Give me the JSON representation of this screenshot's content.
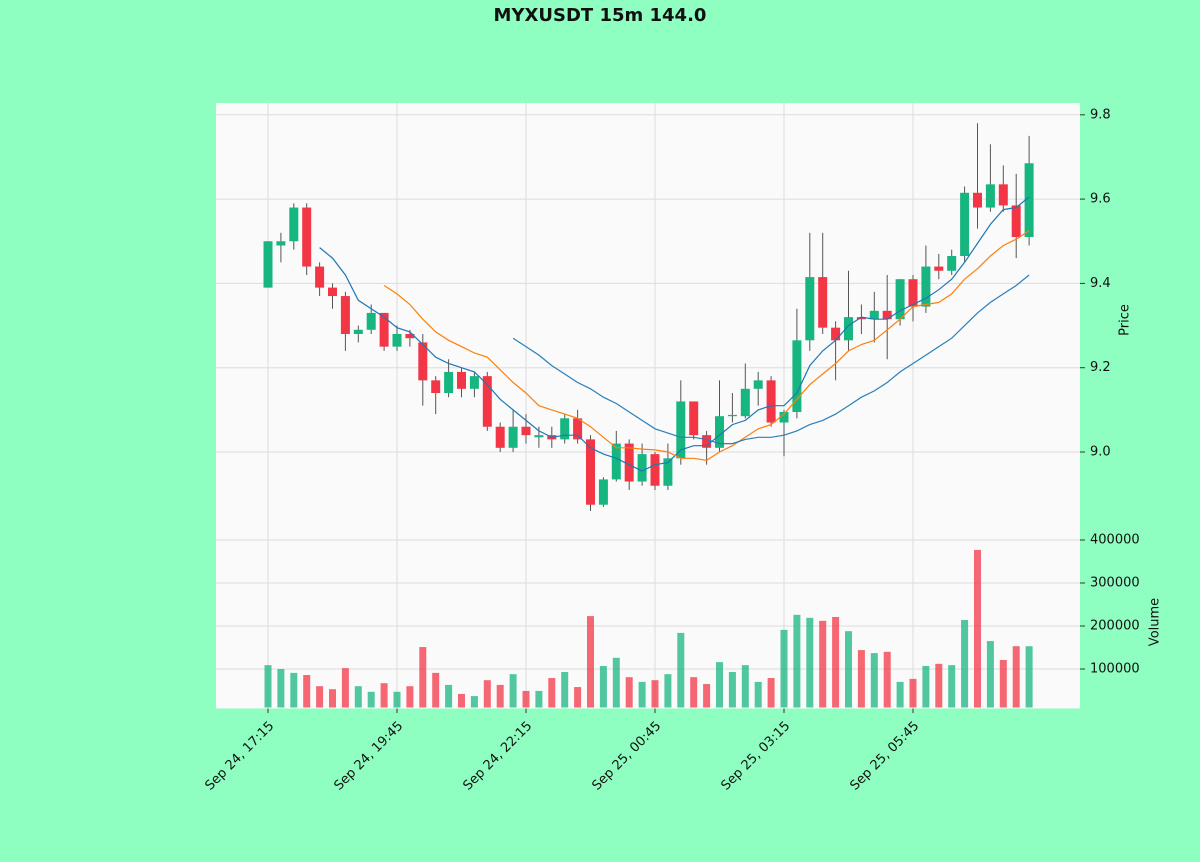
{
  "chart_data": [
    {
      "type": "candlestick",
      "title": "MYXUSDT 15m 144.0",
      "ylabel": "Price",
      "categories": [
        "Sep 24, 17:15",
        null,
        null,
        null,
        null,
        null,
        null,
        null,
        null,
        null,
        "Sep 24, 19:45",
        null,
        null,
        null,
        null,
        null,
        null,
        null,
        null,
        null,
        "Sep 24, 22:15",
        null,
        null,
        null,
        null,
        null,
        null,
        null,
        null,
        null,
        "Sep 25, 00:45",
        null,
        null,
        null,
        null,
        null,
        null,
        null,
        null,
        null,
        "Sep 25, 03:15",
        null,
        null,
        null,
        null,
        null,
        null,
        null,
        null,
        null,
        "Sep 25, 05:45",
        null,
        null,
        null,
        null,
        null,
        null,
        null,
        null,
        null
      ],
      "open": [
        9.39,
        9.49,
        9.5,
        9.58,
        9.44,
        9.39,
        9.37,
        9.28,
        9.29,
        9.33,
        9.25,
        9.28,
        9.26,
        9.17,
        9.14,
        9.19,
        9.15,
        9.18,
        9.06,
        9.01,
        9.06,
        9.035,
        9.04,
        9.03,
        9.08,
        9.03,
        8.875,
        8.935,
        9.02,
        8.93,
        8.995,
        8.92,
        8.985,
        9.12,
        9.04,
        9.01,
        9.085,
        9.085,
        9.15,
        9.17,
        9.07,
        9.095,
        9.265,
        9.415,
        9.295,
        9.265,
        9.32,
        9.315,
        9.335,
        9.315,
        9.41,
        9.345,
        9.44,
        9.43,
        9.465,
        9.615,
        9.58,
        9.635,
        9.585,
        9.51
      ],
      "high": [
        9.5,
        9.52,
        9.59,
        9.59,
        9.45,
        9.4,
        9.38,
        9.3,
        9.35,
        9.33,
        9.3,
        9.29,
        9.28,
        9.18,
        9.22,
        9.2,
        9.19,
        9.19,
        9.07,
        9.1,
        9.09,
        9.06,
        9.06,
        9.09,
        9.1,
        9.04,
        8.94,
        9.05,
        9.03,
        9.02,
        9.0,
        9.02,
        9.17,
        9.12,
        9.05,
        9.17,
        9.14,
        9.21,
        9.19,
        9.18,
        9.1,
        9.34,
        9.52,
        9.52,
        9.31,
        9.43,
        9.35,
        9.38,
        9.42,
        9.41,
        9.42,
        9.49,
        9.47,
        9.48,
        9.63,
        9.78,
        9.73,
        9.68,
        9.66,
        9.75
      ],
      "low": [
        9.39,
        9.45,
        9.48,
        9.42,
        9.37,
        9.34,
        9.24,
        9.26,
        9.28,
        9.24,
        9.24,
        9.25,
        9.11,
        9.09,
        9.13,
        9.13,
        9.13,
        9.05,
        9.0,
        9.0,
        9.02,
        9.01,
        9.01,
        9.02,
        9.02,
        8.86,
        8.87,
        8.93,
        8.91,
        8.92,
        8.91,
        8.91,
        8.97,
        9.03,
        8.97,
        9.0,
        9.07,
        9.08,
        9.11,
        9.06,
        8.99,
        9.08,
        9.24,
        9.28,
        9.17,
        9.24,
        9.28,
        9.26,
        9.22,
        9.3,
        9.31,
        9.33,
        9.41,
        9.42,
        9.45,
        9.53,
        9.57,
        9.57,
        9.46,
        9.49
      ],
      "close": [
        9.5,
        9.5,
        9.58,
        9.44,
        9.39,
        9.37,
        9.28,
        9.29,
        9.33,
        9.25,
        9.28,
        9.27,
        9.17,
        9.14,
        9.19,
        9.15,
        9.18,
        9.06,
        9.01,
        9.06,
        9.04,
        9.04,
        9.03,
        9.08,
        9.03,
        8.875,
        8.935,
        9.02,
        8.93,
        8.995,
        8.92,
        8.985,
        9.12,
        9.04,
        9.01,
        9.085,
        9.088,
        9.15,
        9.17,
        9.07,
        9.095,
        9.265,
        9.415,
        9.295,
        9.265,
        9.32,
        9.315,
        9.335,
        9.315,
        9.41,
        9.345,
        9.44,
        9.43,
        9.465,
        9.615,
        9.58,
        9.635,
        9.585,
        9.51,
        9.685
      ],
      "up_color": "#17b57f",
      "down_color": "#f23645",
      "series": [
        {
          "color": "#1f77b4",
          "values": [
            null,
            null,
            null,
            null,
            9.485,
            9.46,
            9.42,
            9.36,
            9.34,
            9.32,
            9.295,
            9.285,
            9.255,
            9.225,
            9.21,
            9.2,
            9.19,
            9.16,
            9.125,
            9.1,
            9.075,
            9.05,
            9.035,
            9.04,
            9.04,
            9.01,
            8.995,
            8.985,
            8.97,
            8.955,
            8.97,
            8.975,
            9.005,
            9.015,
            9.015,
            9.04,
            9.065,
            9.075,
            9.1,
            9.11,
            9.11,
            9.14,
            9.205,
            9.24,
            9.265,
            9.3,
            9.32,
            9.315,
            9.315,
            9.335,
            9.35,
            9.365,
            9.385,
            9.41,
            9.45,
            9.495,
            9.54,
            9.575,
            9.58,
            9.605
          ]
        },
        {
          "color": "#ff7f0e",
          "values": [
            null,
            null,
            null,
            null,
            null,
            null,
            null,
            null,
            null,
            9.395,
            9.375,
            9.35,
            9.315,
            9.285,
            9.265,
            9.25,
            9.235,
            9.225,
            9.195,
            9.165,
            9.14,
            9.11,
            9.1,
            9.09,
            9.08,
            9.06,
            9.035,
            9.01,
            9.01,
            9.007,
            9.005,
            9.0,
            8.985,
            8.985,
            8.98,
            9.0,
            9.015,
            9.035,
            9.055,
            9.065,
            9.09,
            9.125,
            9.16,
            9.185,
            9.21,
            9.24,
            9.255,
            9.265,
            9.29,
            9.315,
            9.345,
            9.35,
            9.355,
            9.375,
            9.41,
            9.435,
            9.465,
            9.49,
            9.505,
            9.525
          ]
        },
        {
          "color": "#2a7fb8",
          "values": [
            null,
            null,
            null,
            null,
            null,
            null,
            null,
            null,
            null,
            null,
            null,
            null,
            null,
            null,
            null,
            null,
            null,
            null,
            null,
            9.27,
            9.25,
            9.23,
            9.205,
            9.185,
            9.165,
            9.15,
            9.13,
            9.115,
            9.095,
            9.075,
            9.055,
            9.045,
            9.035,
            9.035,
            9.03,
            9.02,
            9.02,
            9.03,
            9.035,
            9.035,
            9.04,
            9.05,
            9.065,
            9.075,
            9.09,
            9.11,
            9.13,
            9.145,
            9.165,
            9.19,
            9.21,
            9.23,
            9.25,
            9.27,
            9.3,
            9.33,
            9.355,
            9.375,
            9.395,
            9.42
          ]
        }
      ],
      "ylim": [
        8.815,
        9.828
      ],
      "yticks": [
        {
          "value": 9.0,
          "label": "9.0"
        },
        9.2,
        9.4,
        9.6,
        9.8
      ],
      "grid": true
    },
    {
      "type": "bar",
      "ylabel": "Volume",
      "values": [
        109000,
        100000,
        91000,
        86000,
        60000,
        53000,
        102000,
        60000,
        47000,
        67000,
        47000,
        60000,
        151000,
        91000,
        63000,
        42000,
        37000,
        74000,
        63000,
        88000,
        49000,
        49000,
        79000,
        93000,
        58000,
        223000,
        107000,
        126000,
        81000,
        70000,
        74000,
        88000,
        184000,
        81000,
        65000,
        116000,
        93000,
        109000,
        70000,
        79000,
        191000,
        226000,
        219000,
        212000,
        221000,
        188000,
        144000,
        137000,
        140000,
        70000,
        77000,
        107000,
        112000,
        109000,
        214000,
        377000,
        165000,
        121000,
        153000,
        153000
      ],
      "ylim": [
        9300,
        407000
      ],
      "yticks": [
        100000,
        200000,
        300000,
        400000
      ],
      "grid": true
    }
  ]
}
